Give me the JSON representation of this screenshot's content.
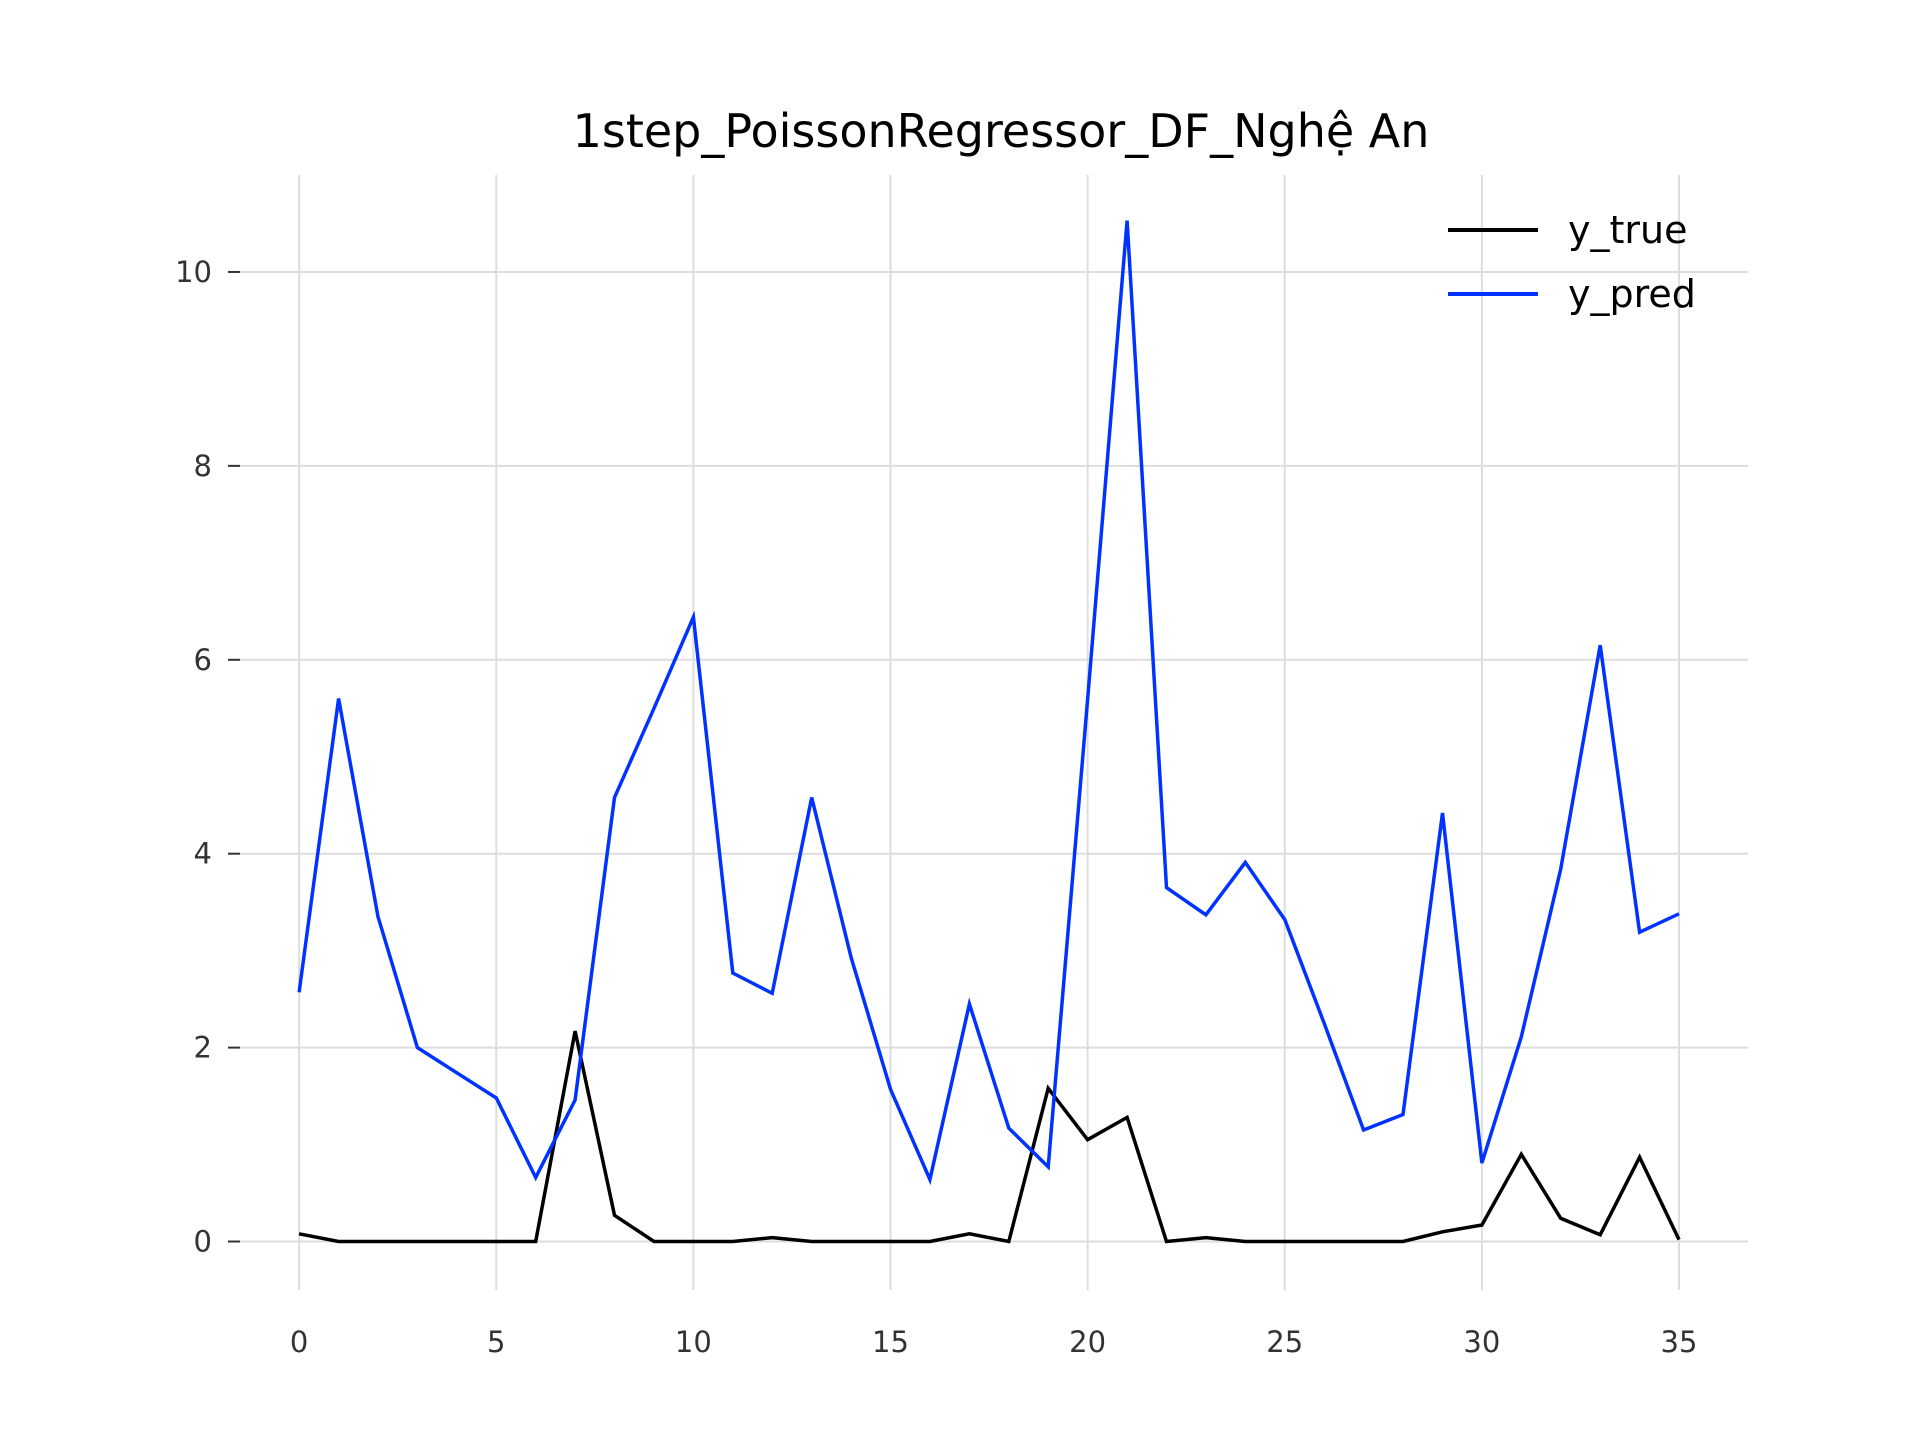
{
  "chart_data": {
    "type": "line",
    "title": "1step_PoissonRegressor_DF_Nghệ An",
    "xlabel": "",
    "ylabel": "",
    "x": [
      0,
      1,
      2,
      3,
      4,
      5,
      6,
      7,
      8,
      9,
      10,
      11,
      12,
      13,
      14,
      15,
      16,
      17,
      18,
      19,
      20,
      21,
      22,
      23,
      24,
      25,
      26,
      27,
      28,
      29,
      30,
      31,
      32,
      33,
      34,
      35
    ],
    "xlim": [
      -1.5,
      36.75
    ],
    "ylim": [
      -0.5,
      11.0
    ],
    "xticks": [
      0,
      5,
      10,
      15,
      20,
      25,
      30,
      35
    ],
    "yticks": [
      0,
      2,
      4,
      6,
      8,
      10
    ],
    "grid": true,
    "legend": "top-right",
    "series": [
      {
        "name": "y_true",
        "color": "#000000",
        "values": [
          0.08,
          0.0,
          0.0,
          0.0,
          0.0,
          0.0,
          0.0,
          2.17,
          0.27,
          0.0,
          0.0,
          0.0,
          0.04,
          0.0,
          0.0,
          0.0,
          0.0,
          0.08,
          0.0,
          1.58,
          1.05,
          1.28,
          0.0,
          0.04,
          0.0,
          0.0,
          0.0,
          0.0,
          0.0,
          0.1,
          0.17,
          0.9,
          0.24,
          0.07,
          0.87,
          0.02
        ]
      },
      {
        "name": "y_pred",
        "color": "#0033ff",
        "values": [
          2.57,
          5.6,
          3.35,
          2.0,
          1.74,
          1.48,
          0.66,
          1.46,
          4.58,
          5.5,
          6.44,
          2.77,
          2.56,
          4.58,
          2.93,
          1.57,
          0.64,
          2.45,
          1.17,
          0.77,
          5.59,
          10.53,
          3.65,
          3.37,
          3.91,
          3.32,
          2.25,
          1.15,
          1.31,
          4.42,
          0.81,
          2.11,
          3.84,
          6.15,
          3.19,
          3.38
        ]
      }
    ]
  }
}
